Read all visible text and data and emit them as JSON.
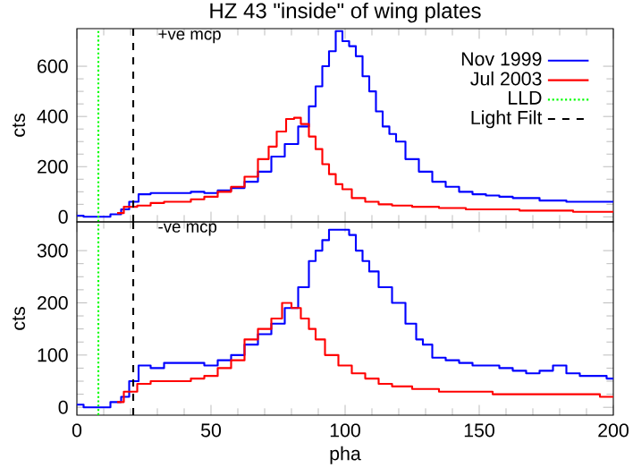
{
  "chart_data": [
    {
      "type": "step",
      "title": "HZ 43 \"inside\" of wing plates",
      "ylabel": "cts",
      "annotations": [
        "+ve mcp"
      ],
      "xlim": [
        0,
        200
      ],
      "xticks": [
        0,
        50,
        100,
        150,
        200
      ],
      "ylim": [
        -20,
        750
      ],
      "yticks": [
        0,
        200,
        400,
        600
      ],
      "tick_labels": "y",
      "legend": "top right",
      "grid": false,
      "series": [
        {
          "name": "LLD",
          "type": "line",
          "line_style": "dotted",
          "color": "#00ff00",
          "x": [
            8,
            8
          ],
          "values": [
            -20,
            750
          ]
        },
        {
          "name": "Light Filt",
          "type": "line",
          "line_style": "dashed",
          "color": "#000000",
          "x": [
            21,
            21
          ],
          "values": [
            -20,
            750
          ]
        },
        {
          "name": "Nov 1999",
          "color": "#0000ff",
          "x": [
            0,
            5,
            10,
            15,
            18,
            21,
            25,
            30,
            35,
            40,
            45,
            50,
            55,
            60,
            65,
            70,
            75,
            80,
            85,
            88,
            90,
            93,
            95,
            98,
            100,
            103,
            105,
            108,
            110,
            113,
            115,
            118,
            120,
            125,
            130,
            135,
            140,
            145,
            150,
            155,
            160,
            165,
            170,
            175,
            180,
            185,
            190,
            195,
            200
          ],
          "values": [
            5,
            0,
            0,
            10,
            30,
            60,
            90,
            95,
            95,
            95,
            100,
            95,
            105,
            115,
            140,
            180,
            240,
            290,
            360,
            440,
            520,
            600,
            660,
            740,
            700,
            680,
            640,
            560,
            500,
            420,
            360,
            330,
            300,
            230,
            180,
            140,
            120,
            100,
            90,
            85,
            80,
            75,
            75,
            65,
            65,
            60,
            60,
            60,
            60
          ]
        },
        {
          "name": "Jul 2003",
          "color": "#ff0000",
          "x": [
            15,
            20,
            25,
            30,
            35,
            40,
            45,
            50,
            55,
            60,
            65,
            70,
            73,
            76,
            80,
            82,
            85,
            88,
            90,
            93,
            95,
            98,
            100,
            105,
            110,
            115,
            120,
            130,
            140,
            150,
            160,
            170,
            180,
            190,
            200
          ],
          "values": [
            15,
            40,
            45,
            55,
            60,
            60,
            70,
            80,
            100,
            120,
            160,
            230,
            280,
            340,
            390,
            395,
            370,
            320,
            270,
            210,
            170,
            130,
            110,
            75,
            60,
            50,
            45,
            40,
            35,
            30,
            30,
            25,
            25,
            20,
            20
          ]
        }
      ]
    },
    {
      "type": "step",
      "xlabel": "pha",
      "ylabel": "cts",
      "annotations": [
        "-ve mcp"
      ],
      "xlim": [
        0,
        200
      ],
      "xticks": [
        0,
        50,
        100,
        150,
        200
      ],
      "ylim": [
        -15,
        355
      ],
      "yticks": [
        0,
        100,
        200,
        300
      ],
      "grid": false,
      "ref_lines": [
        {
          "axis": "x",
          "value": 8,
          "color": "#00ff00",
          "line_style": "dotted"
        },
        {
          "axis": "x",
          "value": 21,
          "color": "#000000",
          "line_style": "dashed"
        }
      ],
      "series": [
        {
          "color": "#0000ff",
          "x": [
            0,
            5,
            10,
            15,
            18,
            21,
            25,
            30,
            35,
            40,
            45,
            50,
            55,
            60,
            65,
            70,
            75,
            80,
            85,
            88,
            90,
            93,
            95,
            100,
            103,
            105,
            108,
            110,
            115,
            120,
            125,
            128,
            130,
            135,
            140,
            145,
            150,
            155,
            160,
            165,
            170,
            175,
            180,
            185,
            190,
            195,
            200
          ],
          "values": [
            5,
            0,
            0,
            10,
            20,
            50,
            80,
            75,
            85,
            85,
            85,
            80,
            90,
            100,
            120,
            140,
            160,
            190,
            230,
            280,
            300,
            320,
            340,
            340,
            330,
            300,
            280,
            260,
            230,
            200,
            160,
            130,
            120,
            95,
            90,
            85,
            80,
            80,
            75,
            70,
            65,
            70,
            80,
            65,
            60,
            60,
            55
          ]
        },
        {
          "color": "#ff0000",
          "x": [
            15,
            20,
            25,
            30,
            35,
            40,
            45,
            50,
            55,
            60,
            65,
            70,
            75,
            78,
            82,
            85,
            88,
            90,
            95,
            100,
            105,
            110,
            115,
            120,
            130,
            140,
            150,
            160,
            170,
            180,
            190,
            200
          ],
          "values": [
            10,
            30,
            45,
            50,
            50,
            50,
            55,
            60,
            75,
            90,
            130,
            150,
            170,
            200,
            190,
            170,
            150,
            130,
            100,
            80,
            65,
            55,
            45,
            40,
            35,
            30,
            30,
            25,
            25,
            25,
            25,
            20
          ]
        }
      ]
    }
  ]
}
